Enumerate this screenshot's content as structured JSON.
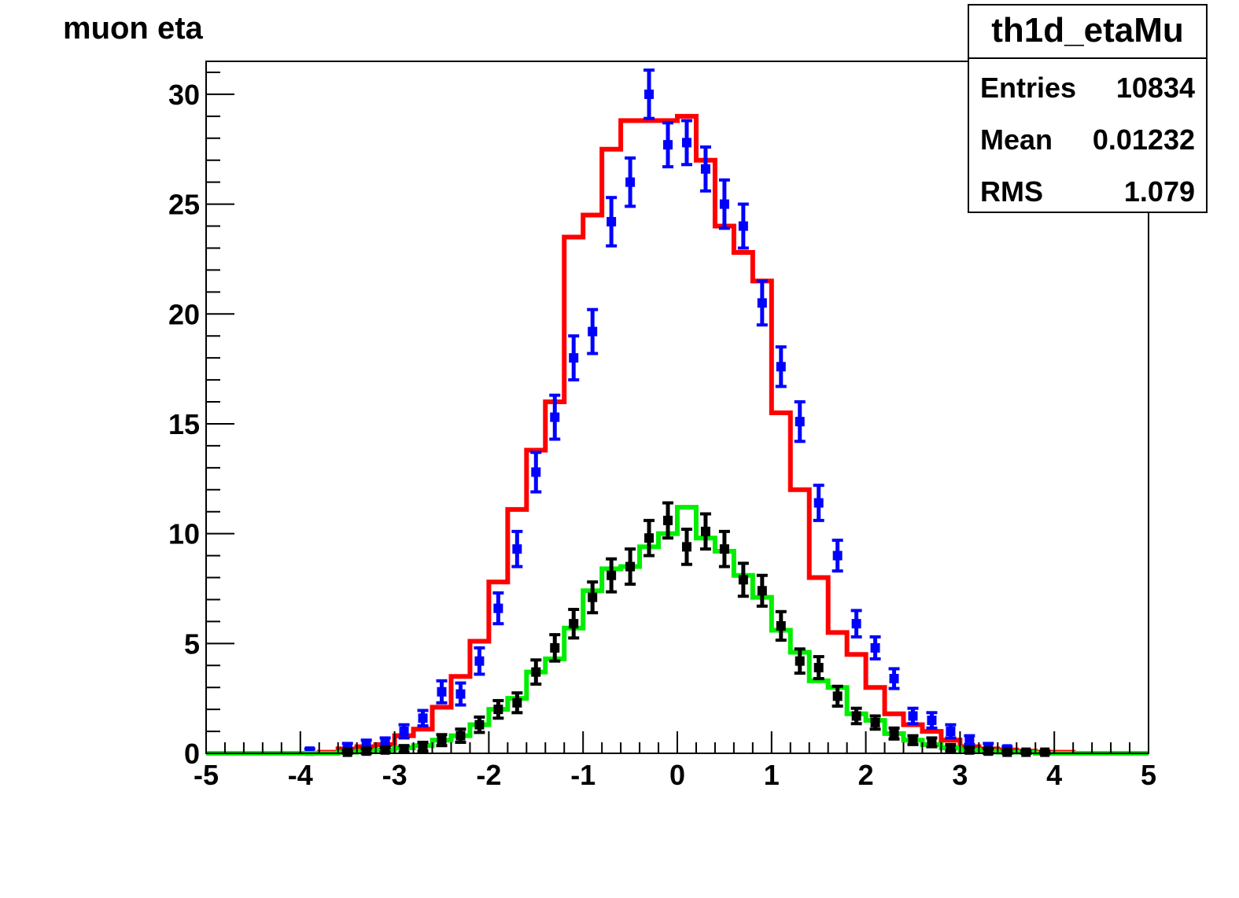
{
  "title": "muon eta",
  "stats": {
    "name": "th1d_etaMu",
    "rows": [
      {
        "label": "Entries",
        "value": "10834"
      },
      {
        "label": "Mean",
        "value": "0.01232"
      },
      {
        "label": "RMS",
        "value": "1.079"
      }
    ]
  },
  "chart_data": {
    "type": "histogram",
    "xlim": [
      -5,
      5
    ],
    "ylim": [
      0,
      31.5
    ],
    "bin_width": 0.2,
    "x_ticks": [
      -5,
      -4,
      -3,
      -2,
      -1,
      0,
      1,
      2,
      3,
      4,
      5
    ],
    "x_tick_labels": [
      "-5",
      "-4",
      "-3",
      "-2",
      "-1",
      "0",
      "1",
      "2",
      "3",
      "4",
      "5"
    ],
    "y_ticks": [
      0,
      5,
      10,
      15,
      20,
      25,
      30
    ],
    "y_tick_labels": [
      "0",
      "5",
      "10",
      "15",
      "20",
      "25",
      "30"
    ],
    "grid": false,
    "series": [
      {
        "style": "step",
        "color": "#ff0000",
        "x": [
          -4.9,
          -4.7,
          -4.5,
          -4.3,
          -4.1,
          -3.9,
          -3.7,
          -3.5,
          -3.3,
          -3.1,
          -2.9,
          -2.7,
          -2.5,
          -2.3,
          -2.1,
          -1.9,
          -1.7,
          -1.5,
          -1.3,
          -1.1,
          -0.9,
          -0.7,
          -0.5,
          -0.3,
          -0.1,
          0.1,
          0.3,
          0.5,
          0.7,
          0.9,
          1.1,
          1.3,
          1.5,
          1.7,
          1.9,
          2.1,
          2.3,
          2.5,
          2.7,
          2.9,
          3.1,
          3.3,
          3.5,
          3.7,
          3.9,
          4.1,
          4.3,
          4.5,
          4.7,
          4.9
        ],
        "y": [
          0,
          0,
          0,
          0,
          0,
          0,
          0.05,
          0.2,
          0.3,
          0.4,
          0.8,
          1.1,
          2.1,
          3.5,
          5.1,
          7.8,
          11.1,
          13.8,
          16.0,
          23.5,
          24.5,
          27.5,
          28.8,
          28.8,
          28.8,
          29.0,
          27.0,
          24.0,
          22.8,
          21.5,
          15.5,
          12.0,
          8.0,
          5.5,
          4.5,
          3.0,
          1.8,
          1.3,
          1.0,
          0.6,
          0.3,
          0.2,
          0.15,
          0.1,
          0.05,
          0.05,
          0,
          0,
          0,
          0
        ]
      },
      {
        "style": "errorbar",
        "color": "#0000ff",
        "x": [
          -3.9,
          -3.5,
          -3.3,
          -3.1,
          -2.9,
          -2.7,
          -2.5,
          -2.3,
          -2.1,
          -1.9,
          -1.7,
          -1.5,
          -1.3,
          -1.1,
          -0.9,
          -0.7,
          -0.5,
          -0.3,
          -0.1,
          0.1,
          0.3,
          0.5,
          0.7,
          0.9,
          1.1,
          1.3,
          1.5,
          1.7,
          1.9,
          2.1,
          2.3,
          2.5,
          2.7,
          2.9,
          3.1,
          3.3,
          3.5
        ],
        "y": [
          0.1,
          0.3,
          0.4,
          0.5,
          1.0,
          1.6,
          2.8,
          2.7,
          4.2,
          6.6,
          9.3,
          12.8,
          15.3,
          18.0,
          19.2,
          24.2,
          26.0,
          30.0,
          27.7,
          27.8,
          26.6,
          25.0,
          24.0,
          20.5,
          17.6,
          15.1,
          11.4,
          9.0,
          5.9,
          4.8,
          3.4,
          1.7,
          1.5,
          1.0,
          0.6,
          0.3,
          0.2
        ],
        "err": [
          0.1,
          0.15,
          0.2,
          0.2,
          0.3,
          0.35,
          0.5,
          0.5,
          0.6,
          0.7,
          0.8,
          0.9,
          1.0,
          1.0,
          1.0,
          1.1,
          1.1,
          1.1,
          1.0,
          1.0,
          1.0,
          1.1,
          1.0,
          1.0,
          0.9,
          0.9,
          0.8,
          0.7,
          0.6,
          0.5,
          0.45,
          0.35,
          0.35,
          0.3,
          0.2,
          0.15,
          0.1
        ]
      },
      {
        "style": "step",
        "color": "#00ee00",
        "x": [
          -4.9,
          -4.7,
          -4.5,
          -4.3,
          -4.1,
          -3.9,
          -3.7,
          -3.5,
          -3.3,
          -3.1,
          -2.9,
          -2.7,
          -2.5,
          -2.3,
          -2.1,
          -1.9,
          -1.7,
          -1.5,
          -1.3,
          -1.1,
          -0.9,
          -0.7,
          -0.5,
          -0.3,
          -0.1,
          0.1,
          0.3,
          0.5,
          0.7,
          0.9,
          1.1,
          1.3,
          1.5,
          1.7,
          1.9,
          2.1,
          2.3,
          2.5,
          2.7,
          2.9,
          3.1,
          3.3,
          3.5,
          3.7,
          3.9,
          4.1,
          4.3,
          4.5,
          4.7,
          4.9
        ],
        "y": [
          0,
          0,
          0,
          0,
          0,
          0,
          0,
          0.05,
          0.1,
          0.15,
          0.25,
          0.35,
          0.6,
          0.8,
          1.3,
          2.0,
          2.5,
          3.7,
          4.3,
          5.7,
          7.4,
          8.4,
          8.5,
          9.4,
          10.0,
          11.2,
          9.8,
          9.2,
          8.1,
          7.1,
          5.6,
          4.6,
          3.3,
          3.0,
          1.8,
          1.5,
          0.9,
          0.6,
          0.4,
          0.25,
          0.15,
          0.1,
          0.05,
          0.05,
          0,
          0,
          0,
          0,
          0,
          0
        ]
      },
      {
        "style": "errorbar",
        "color": "#000000",
        "x": [
          -3.5,
          -3.3,
          -3.1,
          -2.9,
          -2.7,
          -2.5,
          -2.3,
          -2.1,
          -1.9,
          -1.7,
          -1.5,
          -1.3,
          -1.1,
          -0.9,
          -0.7,
          -0.5,
          -0.3,
          -0.1,
          0.1,
          0.3,
          0.5,
          0.7,
          0.9,
          1.1,
          1.3,
          1.5,
          1.7,
          1.9,
          2.1,
          2.3,
          2.5,
          2.7,
          2.9,
          3.1,
          3.3,
          3.5,
          3.7,
          3.9
        ],
        "y": [
          0.05,
          0.1,
          0.15,
          0.2,
          0.3,
          0.6,
          0.8,
          1.3,
          2.0,
          2.3,
          3.7,
          4.8,
          5.9,
          7.1,
          8.1,
          8.5,
          9.8,
          10.6,
          9.4,
          10.1,
          9.3,
          7.9,
          7.4,
          5.8,
          4.2,
          3.9,
          2.6,
          1.7,
          1.4,
          0.9,
          0.6,
          0.5,
          0.25,
          0.15,
          0.1,
          0.05,
          0.05,
          0.05
        ],
        "err": [
          0.05,
          0.1,
          0.1,
          0.15,
          0.2,
          0.25,
          0.3,
          0.35,
          0.4,
          0.45,
          0.55,
          0.6,
          0.65,
          0.7,
          0.75,
          0.8,
          0.8,
          0.8,
          0.8,
          0.8,
          0.8,
          0.75,
          0.7,
          0.65,
          0.55,
          0.5,
          0.45,
          0.35,
          0.3,
          0.25,
          0.2,
          0.2,
          0.15,
          0.1,
          0.1,
          0.05,
          0.05,
          0.05
        ]
      }
    ]
  }
}
